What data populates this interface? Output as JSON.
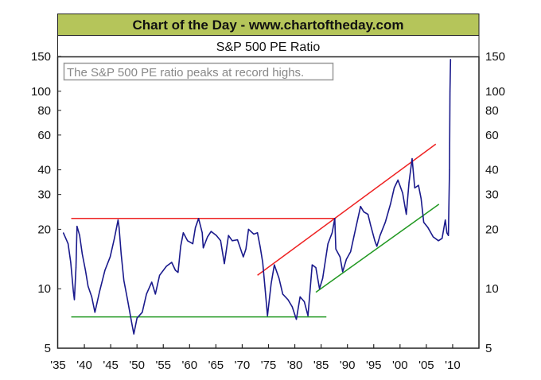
{
  "header": {
    "banner": "Chart of the Day - www.chartoftheday.com",
    "banner_color": "#b5c55a"
  },
  "chart_data": {
    "type": "line",
    "title": "S&P 500 PE Ratio",
    "annotation": "The S&P 500 PE ratio peaks at record highs.",
    "xlabel": "",
    "ylabel": "",
    "xlim": [
      1935,
      2015
    ],
    "ylim": [
      5,
      150
    ],
    "yscale": "log",
    "grid": false,
    "x_tick_labels": [
      "'35",
      "'40",
      "'45",
      "'50",
      "'55",
      "'60",
      "'65",
      "'70",
      "'75",
      "'80",
      "'85",
      "'90",
      "'95",
      "'00",
      "'05",
      "'10"
    ],
    "x_tick_values": [
      1935,
      1940,
      1945,
      1950,
      1955,
      1960,
      1965,
      1970,
      1975,
      1980,
      1985,
      1990,
      1995,
      2000,
      2005,
      2010
    ],
    "y_tick_labels": [
      "150",
      "100",
      "80",
      "60",
      "40",
      "30",
      "20",
      "10",
      "5"
    ],
    "y_tick_values": [
      150,
      100,
      80,
      60,
      40,
      30,
      20,
      10,
      5
    ],
    "series": [
      {
        "color": "#1a1a8c",
        "x": [
          1936.0,
          1936.9,
          1937.4,
          1937.9,
          1938.1,
          1938.4,
          1938.6,
          1939.1,
          1939.6,
          1940.2,
          1940.7,
          1941.4,
          1942.0,
          1942.9,
          1943.9,
          1944.9,
          1945.7,
          1946.4,
          1946.6,
          1947.0,
          1947.5,
          1948.2,
          1949.0,
          1949.4,
          1950.0,
          1951.0,
          1951.8,
          1952.8,
          1953.5,
          1954.3,
          1955.6,
          1956.6,
          1957.3,
          1957.8,
          1958.3,
          1958.8,
          1959.6,
          1960.6,
          1961.1,
          1961.7,
          1962.4,
          1962.6,
          1963.4,
          1964.1,
          1965.1,
          1965.9,
          1966.6,
          1967.4,
          1968.1,
          1969.1,
          1970.2,
          1970.7,
          1971.2,
          1972.2,
          1972.9,
          1973.4,
          1973.9,
          1974.4,
          1974.8,
          1975.5,
          1976.1,
          1977.0,
          1977.7,
          1978.7,
          1979.5,
          1980.3,
          1981.0,
          1981.8,
          1982.5,
          1983.3,
          1984.0,
          1984.7,
          1985.3,
          1986.3,
          1987.1,
          1987.6,
          1987.8,
          1988.6,
          1989.1,
          1989.8,
          1990.6,
          1991.6,
          1992.5,
          1993.1,
          1993.9,
          1994.4,
          1995.2,
          1995.6,
          1996.2,
          1997.2,
          1998.2,
          1998.9,
          1999.6,
          2000.5,
          2001.2,
          2001.7,
          2002.3,
          2002.8,
          2003.5,
          2004.0,
          2004.5,
          2005.3,
          2006.3,
          2007.3,
          2008.0,
          2008.6,
          2008.9,
          2009.2,
          2009.4,
          2009.5,
          2009.6
        ],
        "y": [
          19.2,
          16.9,
          13.6,
          9.7,
          8.8,
          12.8,
          20.7,
          18.6,
          15.0,
          12.4,
          10.3,
          9.1,
          7.6,
          9.7,
          12.4,
          14.5,
          18.0,
          22.3,
          20.4,
          15.0,
          11.0,
          8.8,
          6.7,
          5.9,
          7.1,
          7.6,
          9.4,
          10.8,
          9.4,
          11.7,
          13.0,
          13.6,
          12.4,
          12.1,
          16.4,
          19.2,
          17.5,
          16.9,
          20.4,
          22.7,
          19.2,
          16.1,
          18.3,
          19.5,
          18.6,
          17.5,
          13.4,
          18.6,
          17.5,
          17.7,
          14.5,
          15.9,
          20.0,
          18.9,
          19.2,
          16.4,
          13.6,
          9.7,
          7.3,
          10.6,
          13.2,
          11.3,
          9.4,
          8.8,
          8.1,
          7.0,
          9.1,
          8.6,
          7.3,
          13.2,
          12.8,
          10.0,
          11.3,
          16.9,
          19.2,
          22.7,
          15.9,
          14.5,
          12.2,
          14.1,
          15.4,
          20.4,
          26.1,
          24.5,
          23.8,
          21.0,
          17.5,
          16.4,
          18.6,
          21.7,
          26.9,
          32.4,
          35.5,
          30.5,
          23.8,
          34.5,
          45.6,
          32.4,
          33.4,
          28.6,
          21.7,
          20.4,
          18.3,
          17.5,
          18.0,
          22.3,
          19.2,
          18.6,
          40.0,
          100.0,
          145.0
        ]
      }
    ],
    "trendlines": [
      {
        "name": "resistance",
        "color": "#ee2222",
        "x": [
          1937.5,
          1987.8
        ],
        "y": [
          22.7,
          22.7
        ]
      },
      {
        "name": "support",
        "color": "#229922",
        "x": [
          1937.5,
          1986.0
        ],
        "y": [
          7.2,
          7.2
        ]
      },
      {
        "name": "upper-channel",
        "color": "#ee2222",
        "x": [
          1972.9,
          2006.8
        ],
        "y": [
          11.7,
          54.0
        ]
      },
      {
        "name": "lower-channel",
        "color": "#229922",
        "x": [
          1984.0,
          2007.4
        ],
        "y": [
          9.6,
          26.8
        ]
      }
    ]
  }
}
